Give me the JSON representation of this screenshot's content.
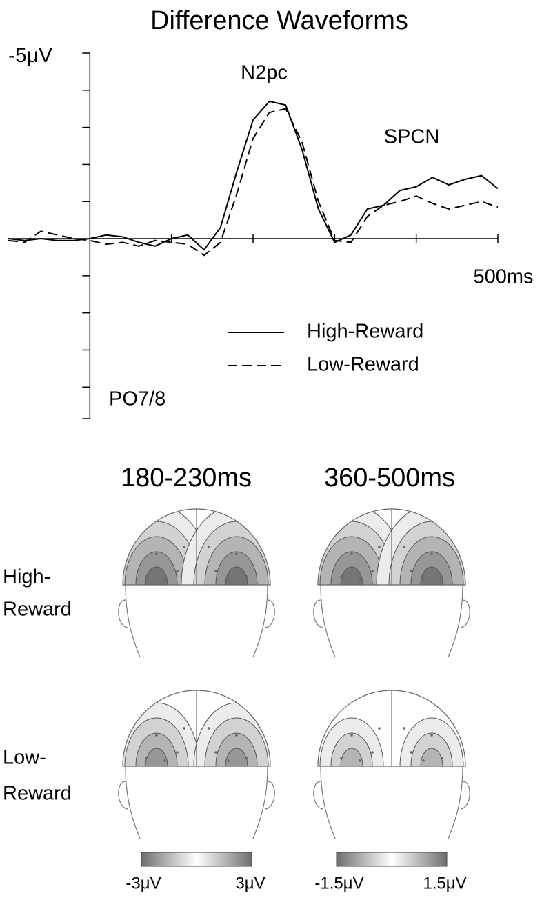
{
  "chart_data": {
    "type": "line",
    "title": "Difference Waveforms",
    "x": [
      -100,
      -80,
      -60,
      -40,
      -20,
      0,
      20,
      40,
      60,
      80,
      100,
      120,
      140,
      160,
      180,
      200,
      220,
      240,
      260,
      280,
      300,
      320,
      340,
      360,
      380,
      400,
      420,
      440,
      460,
      480,
      500
    ],
    "series": [
      {
        "name": "High-Reward",
        "color": "#000000",
        "line_style": "solid",
        "values": [
          0.0,
          0.05,
          0.0,
          0.05,
          0.05,
          0.0,
          -0.1,
          -0.05,
          0.1,
          0.2,
          0.0,
          -0.1,
          0.3,
          -0.3,
          -1.8,
          -3.2,
          -3.7,
          -3.6,
          -2.4,
          -0.8,
          0.1,
          -0.1,
          -0.8,
          -0.9,
          -1.3,
          -1.4,
          -1.65,
          -1.45,
          -1.6,
          -1.7,
          -1.35
        ]
      },
      {
        "name": "Low-Reward",
        "color": "#000000",
        "line_style": "dashed",
        "values": [
          0.05,
          0.1,
          -0.2,
          -0.1,
          0.0,
          0.05,
          0.15,
          0.1,
          0.2,
          0.05,
          0.1,
          0.15,
          0.45,
          0.1,
          -1.2,
          -2.7,
          -3.4,
          -3.5,
          -2.6,
          -1.0,
          0.05,
          0.1,
          -0.6,
          -0.9,
          -1.0,
          -1.15,
          -0.95,
          -0.8,
          -0.9,
          -1.0,
          -0.85
        ]
      }
    ],
    "xlim": [
      -100,
      500
    ],
    "xticks": [
      {
        "value": 500,
        "label": "500ms"
      }
    ],
    "xminor_ticks": [
      100,
      200,
      300,
      400
    ],
    "ylim": [
      4.85,
      -5
    ],
    "yticks": [
      {
        "value": -5,
        "label": "-5μV"
      }
    ],
    "yminor_ticks": [
      -4,
      -3,
      -2,
      -1,
      1,
      2,
      3,
      4
    ],
    "annotations": [
      "N2pc",
      "SPCN"
    ],
    "channel_label": "PO7/8",
    "legend": "lower right",
    "grid": false
  },
  "topography": {
    "time_windows": [
      "180-230ms",
      "360-500ms"
    ],
    "rows": [
      {
        "label": [
          "High-",
          "Reward"
        ]
      },
      {
        "label": [
          "Low-",
          "Reward"
        ]
      }
    ],
    "colorbars": [
      {
        "min_label": "-3μV",
        "max_label": "3μV"
      },
      {
        "min_label": "-1.5μV",
        "max_label": "1.5μV"
      }
    ]
  }
}
